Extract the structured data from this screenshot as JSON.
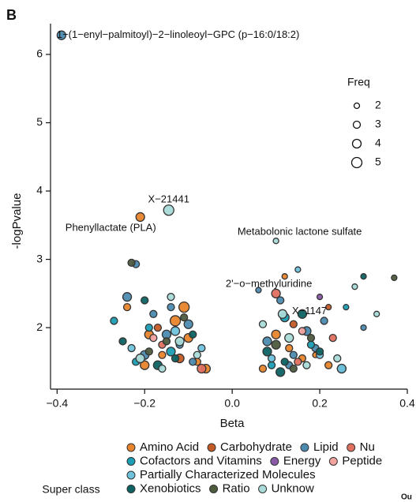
{
  "panel_label": "B",
  "corner_text": "Ou",
  "chart_data": {
    "type": "scatter",
    "x_label": "Beta",
    "y_label": "-logPvalue",
    "xlim": [
      -0.415,
      0.4
    ],
    "ylim": [
      1.1,
      6.45
    ],
    "xticks": [
      {
        "value": -0.4,
        "label": "−0.4"
      },
      {
        "value": -0.2,
        "label": "−0.2"
      },
      {
        "value": 0.0,
        "label": "0.0"
      },
      0.2,
      0.4
    ],
    "yticks": [
      2,
      3,
      4,
      5,
      6
    ],
    "size_legend": {
      "title": "Freq",
      "values": [
        2,
        3,
        4,
        5
      ]
    },
    "legend_title": "Super class",
    "annotations": [
      {
        "text": "1−(1−enyl−palmitoyl)−2−linoleoyl−GPC (p−16:0/18:2)",
        "x": -0.39,
        "y": 6.28
      },
      {
        "text": "X−21441",
        "x": -0.145,
        "y": 3.72
      },
      {
        "text": "Phenyllactate (PLA)",
        "x": -0.21,
        "y": 3.62
      },
      {
        "text": "Metabolonic lactone sulfate",
        "x": 0.1,
        "y": 3.27
      },
      {
        "text": "2'−o−methyluridine",
        "x": 0.1,
        "y": 2.5
      },
      {
        "text": "X−1147",
        "x": 0.115,
        "y": 2.2
      }
    ],
    "series": [
      {
        "name": "Amino Acid",
        "color": "#e8842c",
        "x": [
          -0.21,
          -0.24,
          -0.19,
          -0.16,
          -0.13,
          -0.1,
          -0.08,
          -0.06,
          0.07,
          0.1,
          0.13,
          0.16,
          0.19,
          0.22,
          -0.2,
          0.12,
          -0.11
        ],
        "values": [
          3.62,
          2.3,
          1.9,
          1.6,
          2.1,
          1.85,
          1.5,
          1.4,
          1.4,
          1.9,
          1.7,
          1.55,
          1.6,
          1.45,
          1.45,
          2.75,
          2.3
        ],
        "sizes": [
          4,
          3,
          4,
          3,
          5,
          4,
          3,
          4,
          3,
          4,
          3,
          3,
          2,
          3,
          4,
          2,
          5
        ]
      },
      {
        "name": "Carbohydrate",
        "color": "#c45a26",
        "x": [
          -0.17,
          -0.12,
          0.14,
          0.22
        ],
        "values": [
          2.0,
          1.55,
          2.05,
          2.3
        ],
        "sizes": [
          3,
          4,
          3,
          2
        ]
      },
      {
        "name": "Lipid",
        "color": "#4b8bb0",
        "x": [
          -0.39,
          -0.22,
          -0.24,
          -0.18,
          -0.15,
          -0.12,
          -0.2,
          -0.09,
          -0.14,
          0.08,
          0.11,
          0.14,
          0.17,
          0.21,
          0.25,
          0.3,
          0.13,
          -0.1,
          0.06,
          0.19
        ],
        "values": [
          6.28,
          2.93,
          2.45,
          2.2,
          1.9,
          1.75,
          1.6,
          1.5,
          2.3,
          1.8,
          2.4,
          1.6,
          1.95,
          2.1,
          1.4,
          2.0,
          1.45,
          2.05,
          2.55,
          1.7
        ],
        "sizes": [
          4,
          3,
          4,
          3,
          4,
          3,
          4,
          3,
          3,
          4,
          3,
          3,
          4,
          3,
          4,
          2,
          3,
          4,
          2,
          3
        ]
      },
      {
        "name": "Nu",
        "color": "#e07060",
        "x": [
          -0.07,
          0.1,
          0.23,
          -0.16,
          0.15
        ],
        "values": [
          1.4,
          2.5,
          1.85,
          1.75,
          1.5
        ],
        "sizes": [
          4,
          4,
          3,
          3,
          3
        ]
      },
      {
        "name": "Cofactors and Vitamins",
        "color": "#1b9db3",
        "x": [
          -0.27,
          -0.19,
          -0.14,
          0.09,
          0.12,
          0.18,
          0.26,
          -0.22
        ],
        "values": [
          2.1,
          2.0,
          1.65,
          1.45,
          2.15,
          1.75,
          2.3,
          1.5
        ],
        "sizes": [
          3,
          3,
          4,
          3,
          4,
          3,
          2,
          3
        ]
      },
      {
        "name": "Energy",
        "color": "#8a5aa8",
        "x": [
          0.2
        ],
        "values": [
          2.45
        ],
        "sizes": [
          2
        ]
      },
      {
        "name": "Peptide",
        "color": "#f2a3a0",
        "x": [
          -0.18,
          0.16
        ],
        "values": [
          1.85,
          1.95
        ],
        "sizes": [
          3,
          3
        ]
      },
      {
        "name": "Partially Characterized Molecules",
        "color": "#6fc3dd",
        "x": [
          -0.13,
          -0.23,
          0.09,
          0.2,
          0.25,
          -0.07,
          0.15
        ],
        "values": [
          1.95,
          1.7,
          1.55,
          1.6,
          1.4,
          1.7,
          2.85
        ],
        "sizes": [
          4,
          3,
          3,
          3,
          4,
          3,
          2
        ]
      },
      {
        "name": "Xenobiotics",
        "color": "#0d6363",
        "x": [
          -0.25,
          -0.17,
          -0.13,
          -0.09,
          0.08,
          0.12,
          0.16,
          0.2,
          0.3,
          -0.2,
          0.11
        ],
        "values": [
          1.8,
          1.45,
          1.55,
          1.9,
          1.65,
          1.5,
          2.2,
          1.65,
          2.75,
          2.4,
          1.35
        ],
        "sizes": [
          3,
          4,
          3,
          3,
          4,
          3,
          4,
          3,
          2,
          3,
          4
        ]
      },
      {
        "name": "Ratio",
        "color": "#4d5b3e",
        "x": [
          -0.23,
          -0.15,
          -0.11,
          0.1,
          0.14,
          0.18,
          0.37,
          -0.19
        ],
        "values": [
          2.95,
          1.8,
          2.15,
          1.75,
          1.4,
          1.85,
          2.73,
          1.65
        ],
        "sizes": [
          3,
          3,
          3,
          4,
          3,
          3,
          2,
          3
        ]
      },
      {
        "name": "Unknow",
        "color": "#a9dbd9",
        "x": [
          -0.145,
          0.1,
          0.115,
          -0.21,
          -0.16,
          -0.12,
          -0.08,
          0.07,
          0.13,
          0.17,
          0.24,
          0.33,
          0.28,
          -0.14
        ],
        "values": [
          3.72,
          3.27,
          2.2,
          1.55,
          1.4,
          1.8,
          1.6,
          2.05,
          1.85,
          1.45,
          1.55,
          2.2,
          2.6,
          2.45
        ],
        "sizes": [
          5,
          2,
          4,
          4,
          3,
          4,
          3,
          3,
          4,
          3,
          3,
          2,
          2,
          3
        ]
      }
    ]
  }
}
